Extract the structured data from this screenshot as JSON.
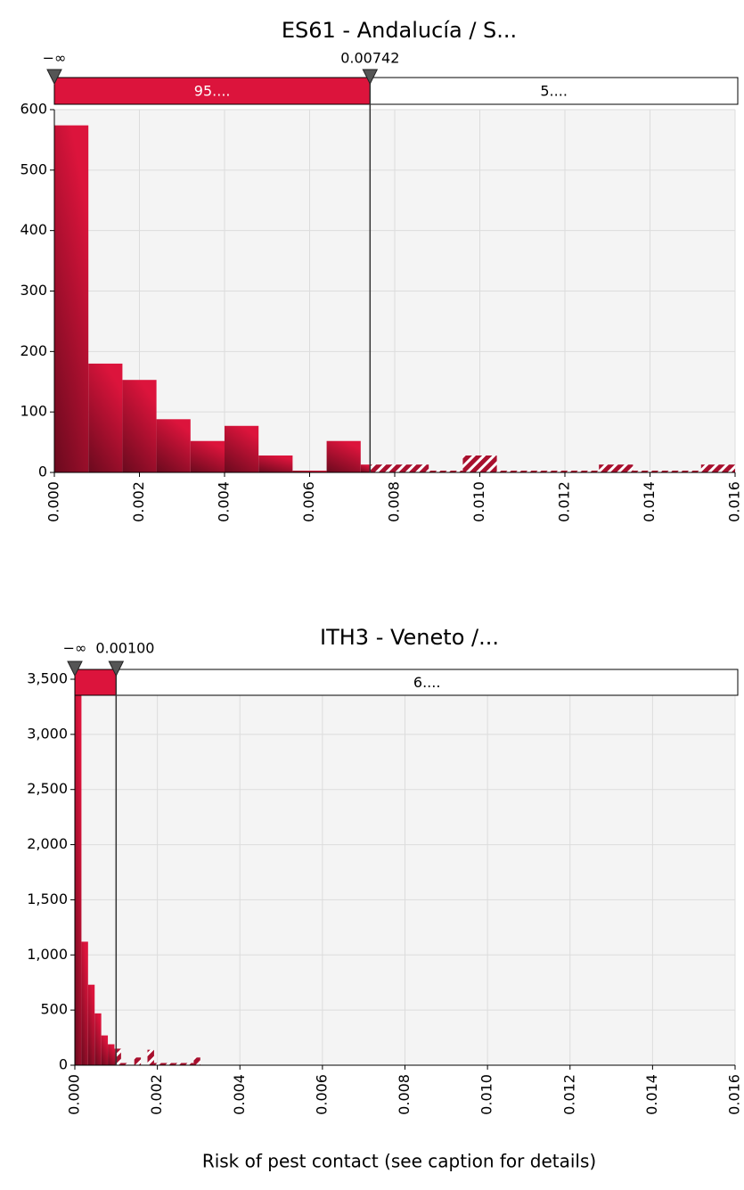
{
  "chart_data": [
    {
      "type": "histogram",
      "title": "ES61 - Andalucía / S...",
      "color": "#dc143c",
      "bins": [
        0,
        0.0008,
        0.0016,
        0.0024,
        0.0032,
        0.004,
        0.0048,
        0.0056,
        0.0064,
        0.0072,
        0.008,
        0.0088,
        0.0096,
        0.0104,
        0.0112,
        0.012,
        0.0128,
        0.0136,
        0.0144,
        0.0152,
        0.016
      ],
      "values": [
        574,
        180,
        153,
        88,
        52,
        77,
        28,
        3,
        52,
        13,
        13,
        3,
        28,
        3,
        3,
        3,
        13,
        3,
        3,
        13
      ],
      "xlim": [
        0,
        0.016
      ],
      "xticks": [
        {
          "value": 0,
          "label": "0.000"
        },
        {
          "value": 0.002,
          "label": "0.002"
        },
        {
          "value": 0.004,
          "label": "0.004"
        },
        {
          "value": 0.006,
          "label": "0.006"
        },
        {
          "value": 0.008,
          "label": "0.008"
        },
        {
          "value": 0.01,
          "label": "0.010"
        },
        {
          "value": 0.012,
          "label": "0.012"
        },
        {
          "value": 0.014,
          "label": "0.014"
        },
        {
          "value": 0.016,
          "label": "0.016"
        }
      ],
      "ylim": [
        0,
        600
      ],
      "yticks": [
        0,
        100,
        200,
        300,
        400,
        500,
        600
      ],
      "grid": true,
      "lower_bound_label": "−∞",
      "threshold": {
        "value": 0.00742,
        "label": "0.00742"
      },
      "segment_labels": [
        "95....",
        "5...."
      ]
    },
    {
      "type": "histogram",
      "title": "ITH3 - Veneto /...",
      "color": "#dc143c",
      "bins": [
        0,
        0.00016,
        0.00032,
        0.00048,
        0.00064,
        0.0008,
        0.00096,
        0.00112,
        0.00128,
        0.00144,
        0.0016,
        0.00176,
        0.00192,
        0.00208,
        0.00224,
        0.0024,
        0.00256,
        0.00272,
        0.00288,
        0.00304,
        0.0032
      ],
      "values": [
        3400,
        1120,
        730,
        470,
        270,
        190,
        150,
        20,
        0,
        70,
        0,
        140,
        20,
        20,
        20,
        20,
        20,
        20,
        70,
        0
      ],
      "xlim": [
        0,
        0.016
      ],
      "xticks": [
        {
          "value": 0,
          "label": "0.000"
        },
        {
          "value": 0.002,
          "label": "0.002"
        },
        {
          "value": 0.004,
          "label": "0.004"
        },
        {
          "value": 0.006,
          "label": "0.006"
        },
        {
          "value": 0.008,
          "label": "0.008"
        },
        {
          "value": 0.01,
          "label": "0.010"
        },
        {
          "value": 0.012,
          "label": "0.012"
        },
        {
          "value": 0.014,
          "label": "0.014"
        },
        {
          "value": 0.016,
          "label": "0.016"
        }
      ],
      "ylim": [
        0,
        3500
      ],
      "yticks": [
        0,
        500,
        {
          "value": 1000,
          "label": "1,000"
        },
        {
          "value": 1500,
          "label": "1,500"
        },
        {
          "value": 2000,
          "label": "2,000"
        },
        {
          "value": 2500,
          "label": "2,500"
        },
        {
          "value": 3000,
          "label": "3,000"
        },
        {
          "value": 3500,
          "label": "3,500"
        }
      ],
      "grid": true,
      "lower_bound_label": "−∞",
      "threshold": {
        "value": 0.001,
        "label": "0.00100"
      },
      "segment_labels": [
        "6...."
      ],
      "xlabel": "Risk of pest contact (see caption for details)"
    }
  ]
}
